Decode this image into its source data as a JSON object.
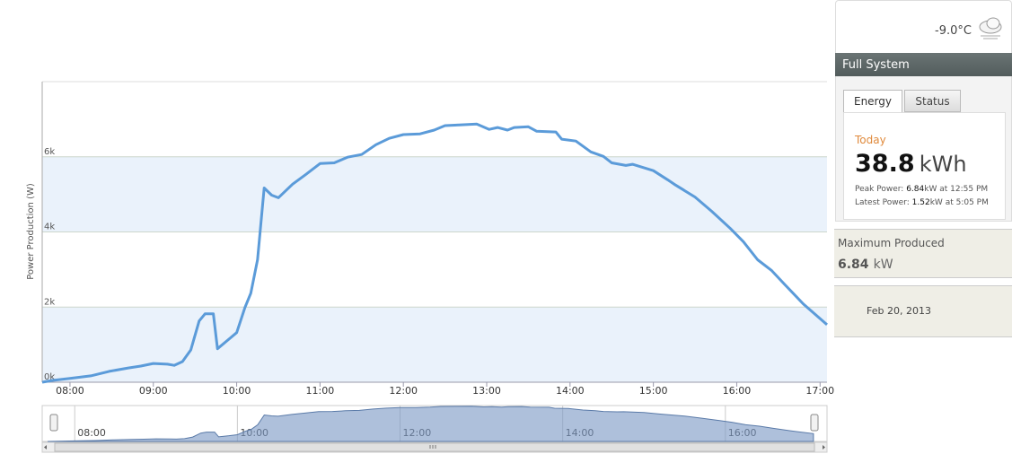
{
  "weather": {
    "temperature": "-9.0°C"
  },
  "panel": {
    "title": "Full System",
    "tabs": [
      "Energy",
      "Status"
    ],
    "today": {
      "label": "Today",
      "value": 38.8,
      "unit": "kWh",
      "peak": {
        "label": "Peak Power:",
        "value": 6.84,
        "unit": "kW",
        "time": "at 12:55 PM"
      },
      "latest": {
        "label": "Latest Power:",
        "value": 1.52,
        "unit": "kW",
        "time": "at 5:05 PM"
      }
    }
  },
  "maximum": {
    "label": "Maximum Produced",
    "value": 6.84,
    "unit": "kW"
  },
  "date": "Feb 20, 2013",
  "chart_data": {
    "type": "line",
    "y_label": "Power Production (W)",
    "color": "#5b9bd9",
    "bands": true,
    "x": [
      7.6667,
      7.8,
      8.0,
      8.25,
      8.47,
      8.7,
      8.85,
      9.0,
      9.17,
      9.25,
      9.35,
      9.45,
      9.55,
      9.62,
      9.72,
      9.77,
      10.0,
      10.1,
      10.17,
      10.25,
      10.33,
      10.42,
      10.5,
      10.67,
      10.83,
      11.0,
      11.17,
      11.33,
      11.5,
      11.67,
      11.83,
      12.0,
      12.2,
      12.37,
      12.5,
      12.67,
      12.88,
      13.03,
      13.13,
      13.25,
      13.33,
      13.5,
      13.6,
      13.83,
      13.9,
      14.07,
      14.25,
      14.4,
      14.5,
      14.67,
      14.75,
      15.0,
      15.17,
      15.25,
      15.5,
      15.7,
      15.92,
      16.08,
      16.25,
      16.42,
      16.58,
      16.8,
      17.0833
    ],
    "values": [
      0,
      50,
      100,
      170,
      290,
      380,
      430,
      500,
      480,
      450,
      550,
      860,
      1630,
      1820,
      1820,
      890,
      1320,
      1990,
      2370,
      3260,
      5170,
      4980,
      4910,
      5270,
      5530,
      5820,
      5840,
      5990,
      6060,
      6320,
      6490,
      6590,
      6610,
      6710,
      6830,
      6850,
      6870,
      6730,
      6780,
      6710,
      6780,
      6800,
      6680,
      6660,
      6470,
      6420,
      6130,
      6010,
      5840,
      5770,
      5800,
      5630,
      5390,
      5270,
      4930,
      4550,
      4100,
      3740,
      3260,
      2970,
      2590,
      2080,
      1530
    ],
    "xlim": [
      7.6667,
      17.0833
    ],
    "ylim": [
      0,
      8000
    ],
    "xticks": [
      {
        "value": 8,
        "label": "08:00"
      },
      {
        "value": 9,
        "label": "09:00"
      },
      {
        "value": 10,
        "label": "10:00"
      },
      {
        "value": 11,
        "label": "11:00"
      },
      {
        "value": 12,
        "label": "12:00"
      },
      {
        "value": 13,
        "label": "13:00"
      },
      {
        "value": 14,
        "label": "14:00"
      },
      {
        "value": 15,
        "label": "15:00"
      },
      {
        "value": 16,
        "label": "16:00"
      },
      {
        "value": 17,
        "label": "17:00"
      }
    ],
    "yticks": [
      {
        "value": 0,
        "label": "0k"
      },
      {
        "value": 2000,
        "label": "2k"
      },
      {
        "value": 4000,
        "label": "4k"
      },
      {
        "value": 6000,
        "label": "6k"
      }
    ],
    "navigator": {
      "xlim": [
        7.6,
        17.25
      ],
      "ylim": [
        0,
        7000
      ],
      "xticks": [
        {
          "value": 8,
          "label": "08:00"
        },
        {
          "value": 10,
          "label": "10:00"
        },
        {
          "value": 12,
          "label": "12:00"
        },
        {
          "value": 14,
          "label": "14:00"
        },
        {
          "value": 16,
          "label": "16:00"
        }
      ]
    }
  }
}
